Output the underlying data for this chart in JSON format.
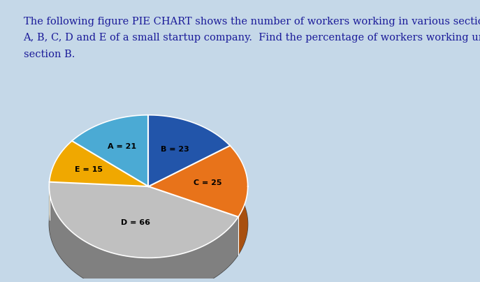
{
  "sections": [
    "A",
    "B",
    "C",
    "D",
    "E"
  ],
  "values": [
    21,
    23,
    25,
    66,
    15
  ],
  "colors": [
    "#4baad4",
    "#2255aa",
    "#e8731a",
    "#c0c0c0",
    "#f0a800"
  ],
  "shadow_colors": [
    "#2d7aa0",
    "#163a7a",
    "#a85010",
    "#808080",
    "#b07800"
  ],
  "dark_side_color": "#555555",
  "bottom_color": "#444444",
  "labels": [
    "A = 21",
    "B = 23",
    "C = 25",
    "D = 66",
    "E = 15"
  ],
  "order": [
    1,
    2,
    3,
    4,
    0
  ],
  "title_line1": "The following figure PIE CHART shows the number of workers working in various sections",
  "title_line2": "A, B, C, D and E of a small startup company.  Find the percentage of workers working under",
  "title_line3": "section B.",
  "background_color": "#ffffff",
  "frame_color": "#c5d8e8",
  "text_color": "#1a1a99",
  "font_size": 10.5
}
